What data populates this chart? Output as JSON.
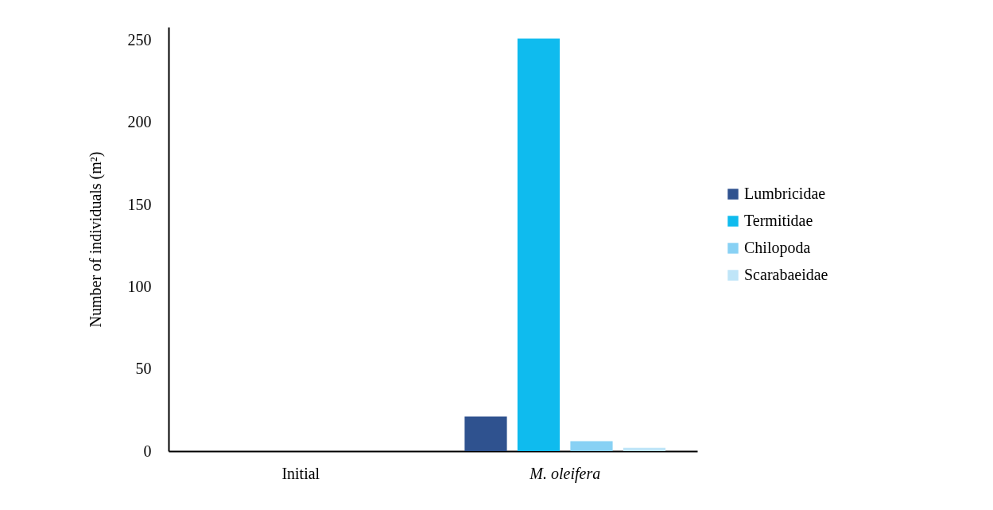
{
  "chart_data": {
    "type": "bar",
    "ylabel": "Number of individuals (m²)",
    "categories": [
      "Initial",
      "M. oleifera"
    ],
    "series": [
      {
        "name": "Lumbricidae",
        "color": "#2f528f",
        "values": [
          0,
          21
        ]
      },
      {
        "name": "Termitidae",
        "color": "#0fbbee",
        "values": [
          0,
          251
        ]
      },
      {
        "name": "Chilopoda",
        "color": "#88d1f4",
        "values": [
          0,
          6
        ]
      },
      {
        "name": "Scarabaeidae",
        "color": "#bfe5f8",
        "values": [
          0,
          2
        ]
      }
    ],
    "ylim": [
      0,
      258
    ],
    "yticks": [
      0,
      50,
      100,
      150,
      200,
      250
    ],
    "grid": false,
    "legend": "right"
  }
}
